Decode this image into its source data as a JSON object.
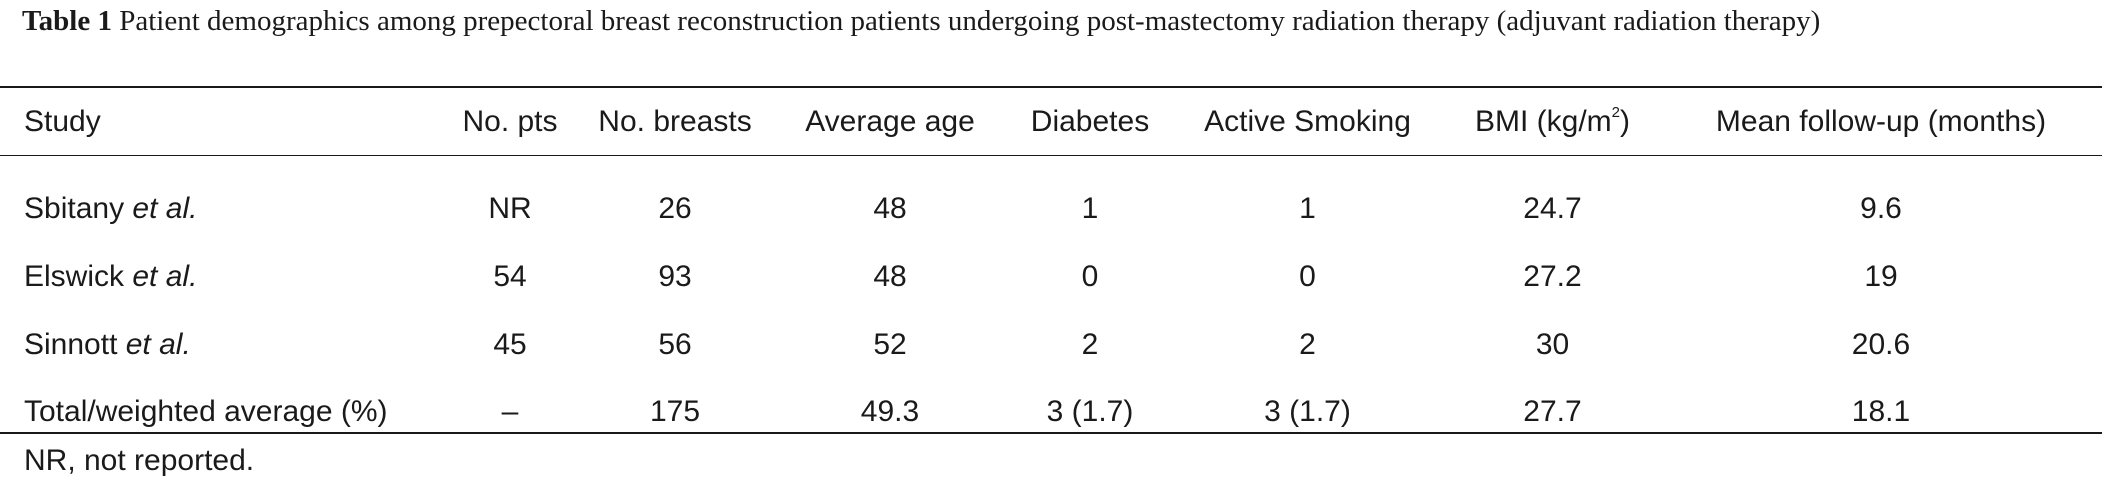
{
  "caption": {
    "label": "Table 1",
    "text": "Patient demographics among prepectoral breast reconstruction patients undergoing post-mastectomy radiation therapy (adjuvant radiation therapy)"
  },
  "table": {
    "headers": {
      "study": "Study",
      "pts": "No. pts",
      "breasts": "No. breasts",
      "age": "Average age",
      "diabetes": "Diabetes",
      "smoking": "Active Smoking",
      "bmi_prefix": "BMI (kg/m",
      "bmi_sup": "2",
      "bmi_suffix": ")",
      "followup": "Mean follow-up (months)"
    },
    "rows": [
      {
        "author": "Sbitany",
        "etal": "et al.",
        "pts": "NR",
        "breasts": "26",
        "age": "48",
        "diabetes": "1",
        "smoking": "1",
        "bmi": "24.7",
        "followup": "9.6"
      },
      {
        "author": "Elswick",
        "etal": "et al.",
        "pts": "54",
        "breasts": "93",
        "age": "48",
        "diabetes": "0",
        "smoking": "0",
        "bmi": "27.2",
        "followup": "19"
      },
      {
        "author": "Sinnott",
        "etal": "et al.",
        "pts": "45",
        "breasts": "56",
        "age": "52",
        "diabetes": "2",
        "smoking": "2",
        "bmi": "30",
        "followup": "20.6"
      }
    ],
    "total": {
      "label": "Total/weighted average (%)",
      "pts": "–",
      "breasts": "175",
      "age": "49.3",
      "diabetes": "3 (1.7)",
      "smoking": "3 (1.7)",
      "bmi": "27.7",
      "followup": "18.1"
    }
  },
  "footnote": "NR, not reported."
}
